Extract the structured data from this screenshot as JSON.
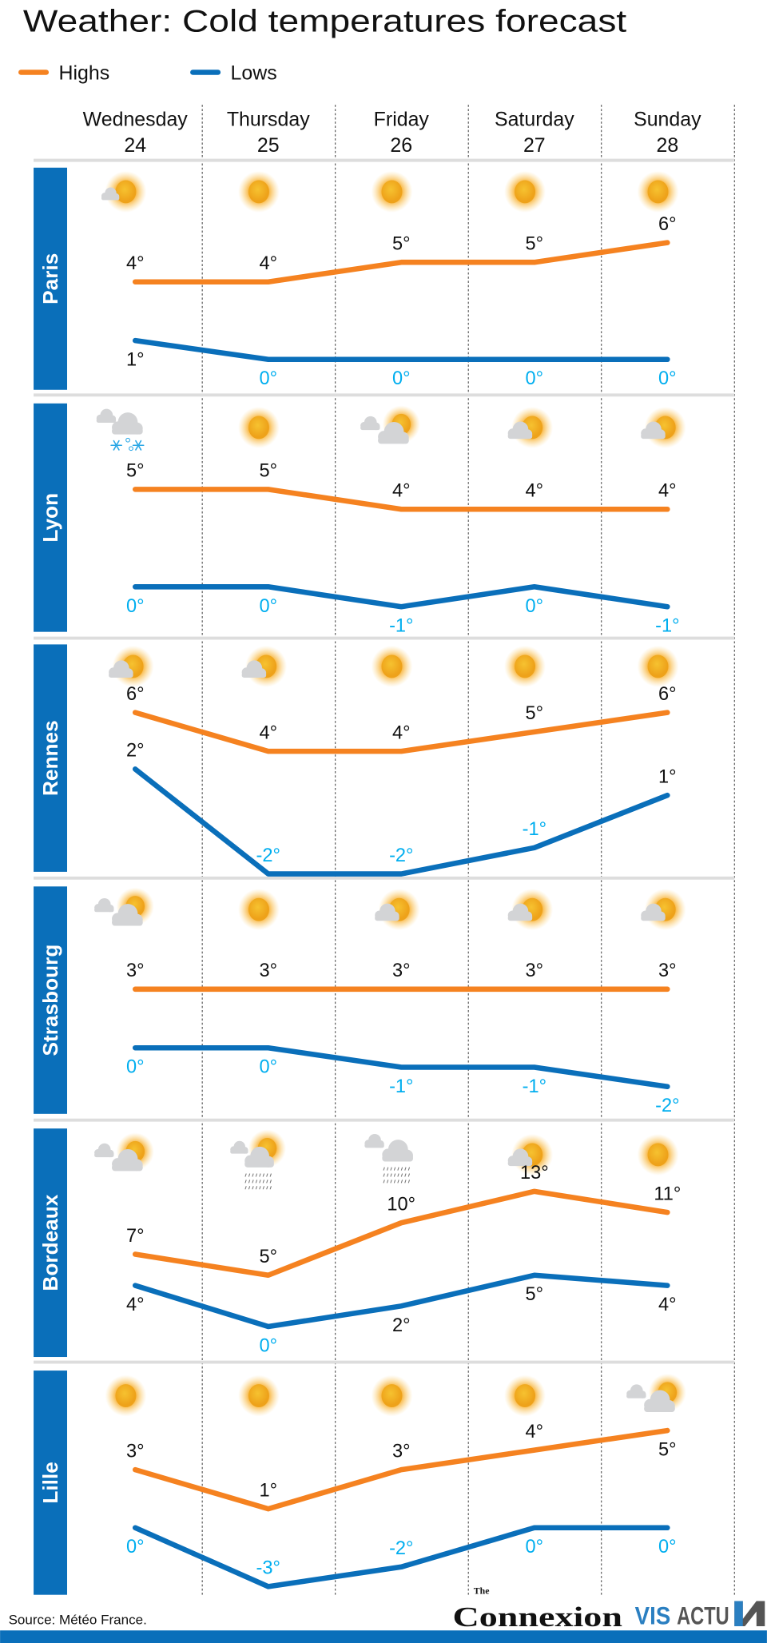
{
  "title": "Weather: Cold temperatures forecast",
  "legend": {
    "highs": "Highs",
    "lows": "Lows"
  },
  "colors": {
    "highs": "#f58220",
    "lows": "#0a6fba",
    "low_label": "#00aeef",
    "city_bar": "#0a6fba",
    "grid": "#dddddd"
  },
  "source": "Source: Météo France.",
  "logos": {
    "connexion_the": "The",
    "connexion": "Connexion",
    "visactu_a": "VIS",
    "visactu_b": "ACTU"
  },
  "chart_data": {
    "type": "line",
    "title": "Weather: Cold temperatures forecast",
    "unit": "°C",
    "days": [
      {
        "name": "Wednesday",
        "date": "24"
      },
      {
        "name": "Thursday",
        "date": "25"
      },
      {
        "name": "Friday",
        "date": "26"
      },
      {
        "name": "Saturday",
        "date": "27"
      },
      {
        "name": "Sunday",
        "date": "28"
      }
    ],
    "series_names": [
      "Highs",
      "Lows"
    ],
    "panels": [
      {
        "city": "Paris",
        "icons": [
          "sun-small-cloud",
          "sun",
          "sun",
          "sun",
          "sun"
        ],
        "highs": [
          4,
          4,
          5,
          5,
          6
        ],
        "lows": [
          1,
          0,
          0,
          0,
          0
        ]
      },
      {
        "city": "Lyon",
        "icons": [
          "snow",
          "sun",
          "clouds-sun",
          "cloud-sun",
          "cloud-sun"
        ],
        "highs": [
          5,
          5,
          4,
          4,
          4
        ],
        "lows": [
          0,
          0,
          -1,
          0,
          -1
        ]
      },
      {
        "city": "Rennes",
        "icons": [
          "cloud-sun",
          "cloud-sun",
          "sun",
          "sun",
          "sun"
        ],
        "highs": [
          6,
          4,
          4,
          5,
          6
        ],
        "lows": [
          2,
          -2,
          -2,
          -1,
          1
        ]
      },
      {
        "city": "Strasbourg",
        "icons": [
          "clouds-sun",
          "sun",
          "cloud-sun",
          "cloud-sun",
          "cloud-sun"
        ],
        "highs": [
          3,
          3,
          3,
          3,
          3
        ],
        "lows": [
          0,
          0,
          -1,
          -1,
          -2
        ]
      },
      {
        "city": "Bordeaux",
        "icons": [
          "clouds-sun",
          "rain-sun",
          "rain",
          "cloud-sun",
          "sun"
        ],
        "highs": [
          7,
          5,
          10,
          13,
          11
        ],
        "lows": [
          4,
          0,
          2,
          5,
          4
        ]
      },
      {
        "city": "Lille",
        "icons": [
          "sun",
          "sun",
          "sun",
          "sun",
          "clouds-sun"
        ],
        "highs": [
          3,
          1,
          3,
          4,
          5
        ],
        "lows": [
          0,
          -3,
          -2,
          0,
          0
        ]
      }
    ]
  }
}
